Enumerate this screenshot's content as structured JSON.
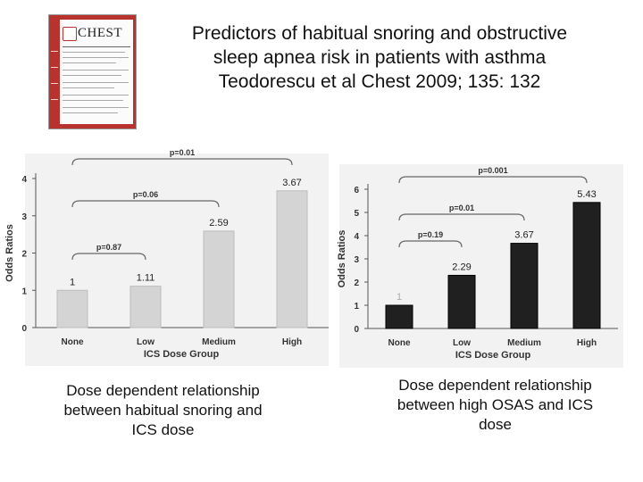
{
  "title": {
    "lines": [
      "Predictors of habitual snoring and obstructive",
      "sleep apnea risk in patients with asthma",
      "Teodorescu et al Chest 2009; 135: 132"
    ]
  },
  "journal_cover": {
    "logo_text": "CHEST",
    "color": "#b8322e"
  },
  "captions": {
    "left": [
      "Dose dependent relationship",
      "between habitual snoring and",
      "ICS dose"
    ],
    "right": [
      "Dose dependent relationship",
      "between high OSAS and ICS",
      "dose"
    ]
  },
  "colors": {
    "left_bar": "#d4d4d4",
    "right_bar": "#202020",
    "text": "#111111"
  },
  "chart_data": [
    {
      "type": "bar",
      "title": "",
      "xlabel": "ICS Dose Group",
      "ylabel": "Odds Ratios",
      "categories": [
        "None",
        "Low",
        "Medium",
        "High"
      ],
      "values": [
        1,
        1.11,
        2.59,
        3.67
      ],
      "value_labels": [
        "1",
        "1.11",
        "2.59",
        "3.67"
      ],
      "ylim": [
        0,
        4
      ],
      "yticks": [
        "0",
        "1",
        "2",
        "3",
        "4"
      ],
      "comparisons": [
        {
          "label": "p=0.87",
          "from": 0,
          "to": 1
        },
        {
          "label": "p=0.06",
          "from": 0,
          "to": 2
        },
        {
          "label": "p=0.01",
          "from": 0,
          "to": 3
        }
      ]
    },
    {
      "type": "bar",
      "title": "",
      "xlabel": "ICS Dose Group",
      "ylabel": "Odds Ratios",
      "categories": [
        "None",
        "Low",
        "Medium",
        "High"
      ],
      "values": [
        1,
        2.29,
        3.67,
        5.43
      ],
      "value_labels": [
        "1",
        "2.29",
        "3.67",
        "5.43"
      ],
      "ylim": [
        0,
        6
      ],
      "yticks": [
        "0",
        "1",
        "2",
        "3",
        "4",
        "5",
        "6"
      ],
      "comparisons": [
        {
          "label": "p=0.19",
          "from": 0,
          "to": 1
        },
        {
          "label": "p=0.01",
          "from": 0,
          "to": 2
        },
        {
          "label": "p=0.001",
          "from": 0,
          "to": 3
        }
      ]
    }
  ]
}
